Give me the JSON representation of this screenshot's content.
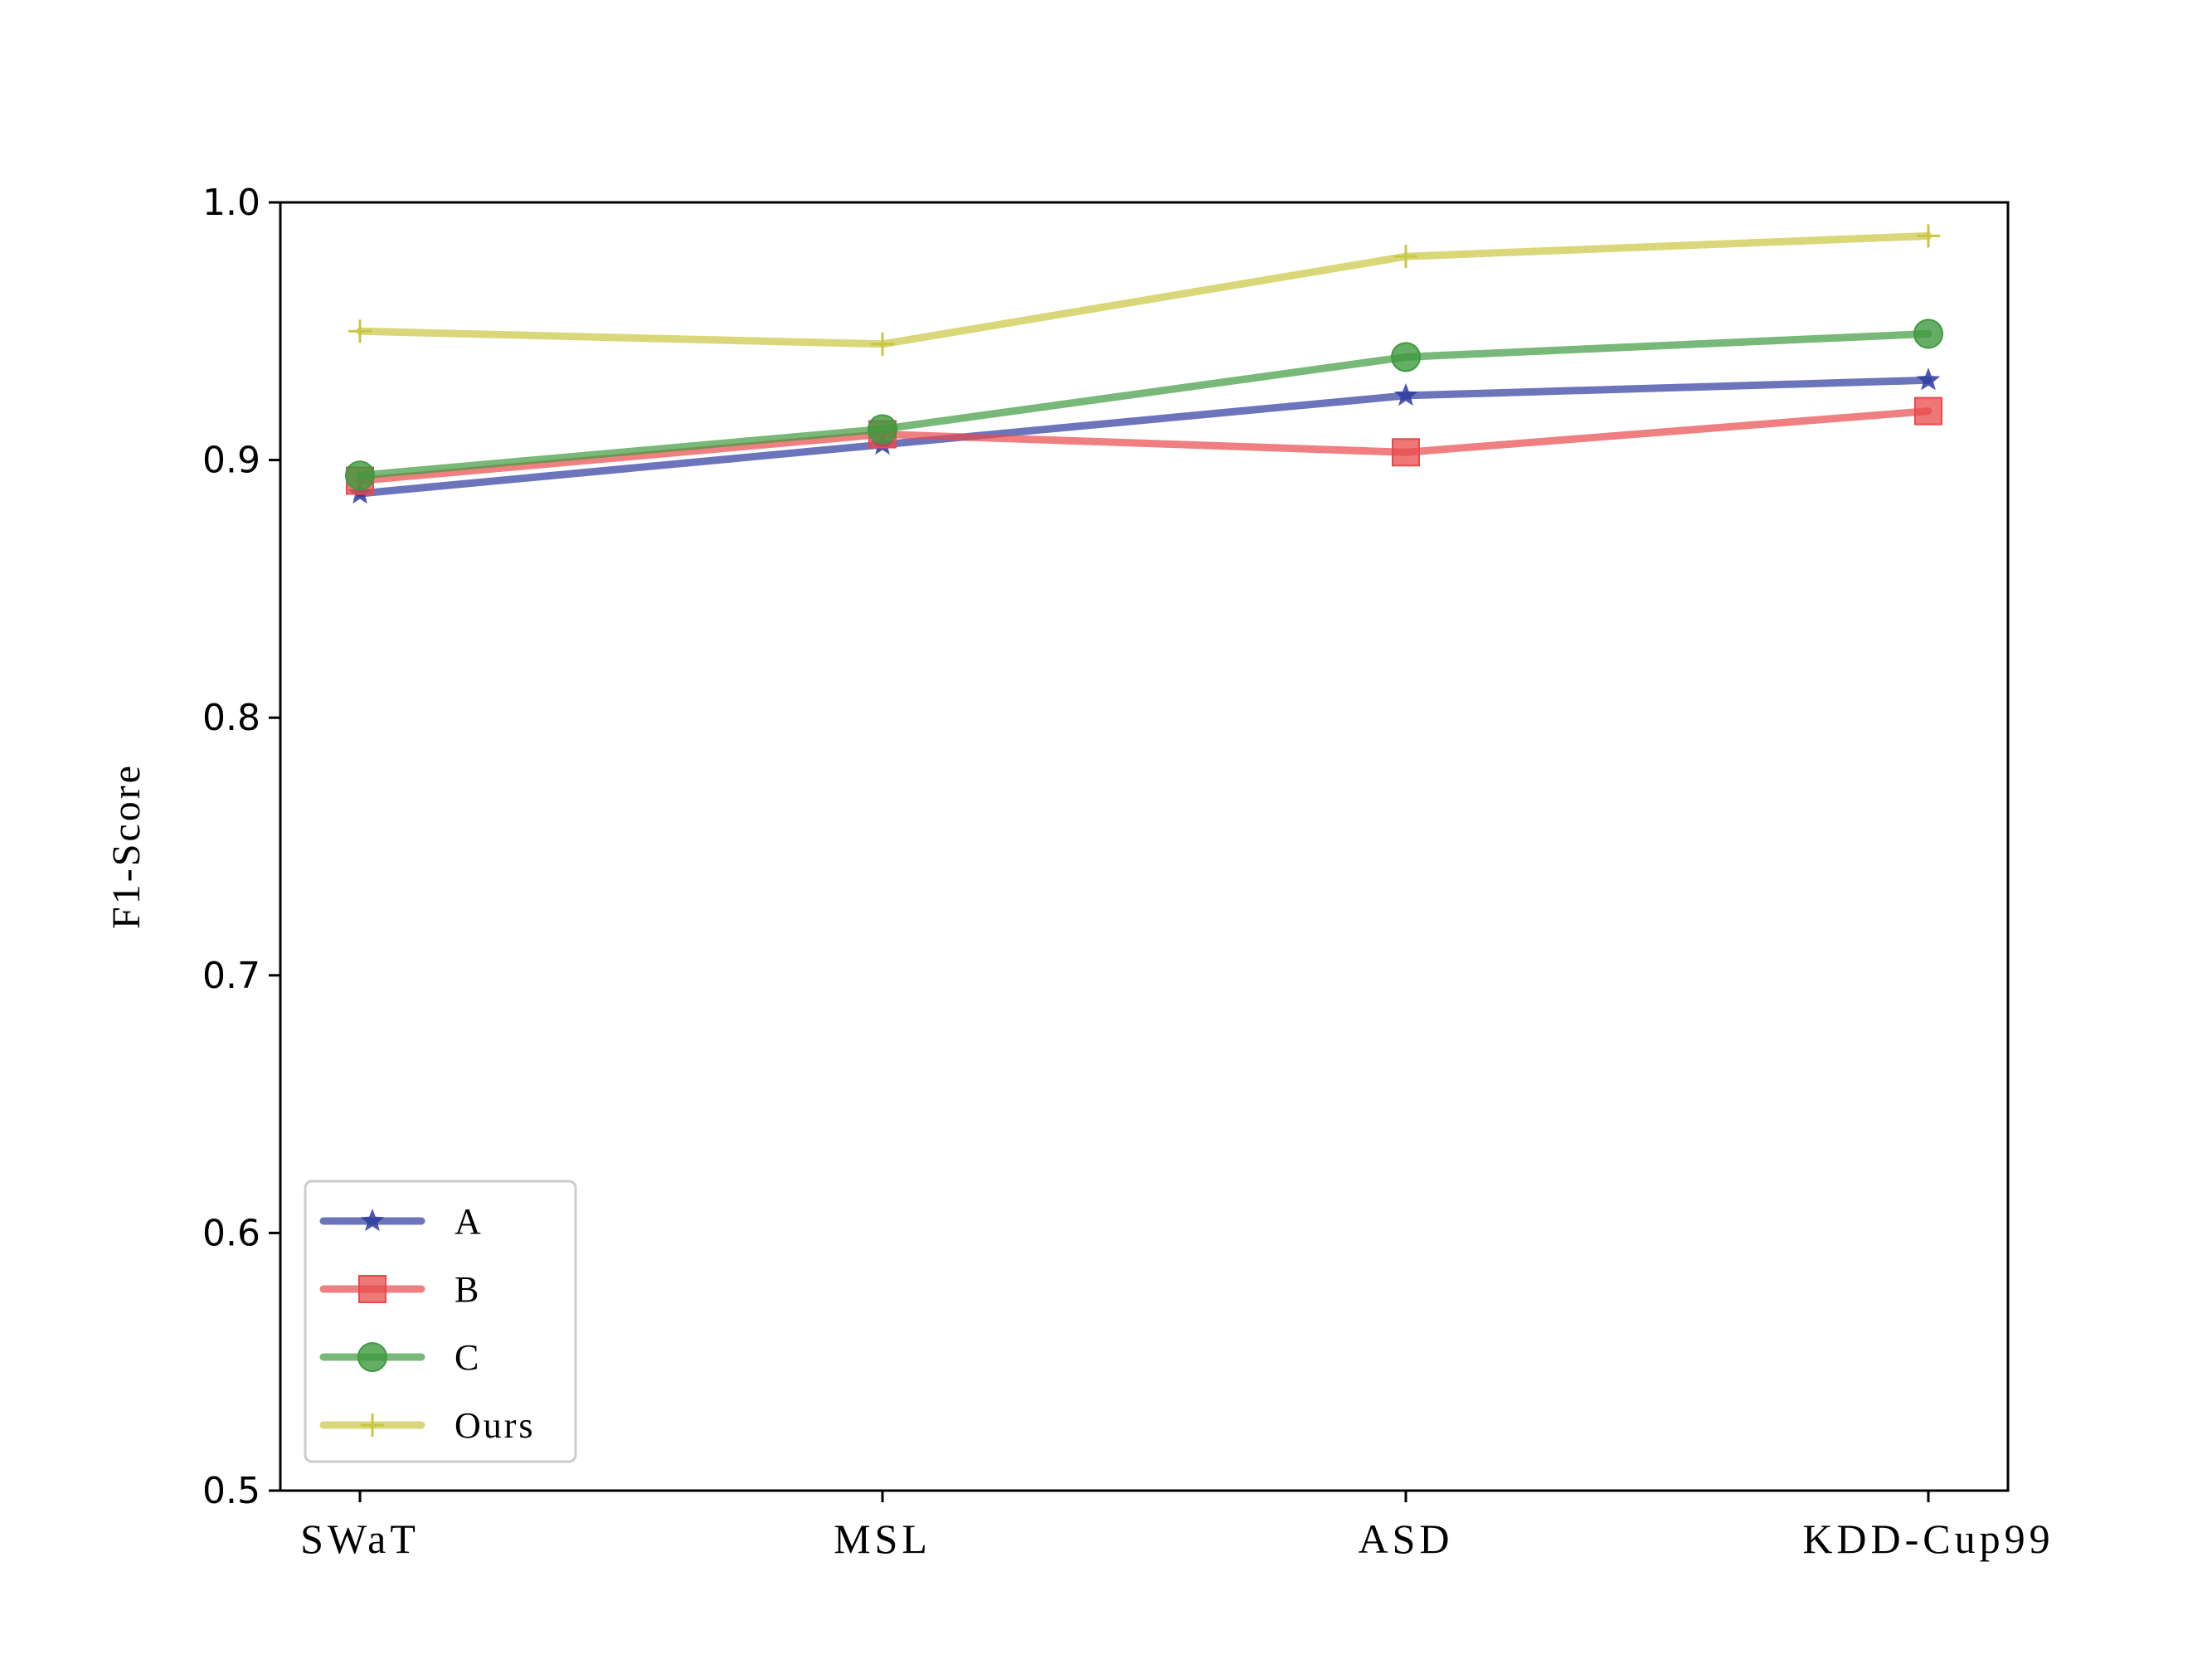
{
  "chart_data": {
    "type": "line",
    "categories": [
      "SWaT",
      "MSL",
      "ASD",
      "KDD-Cup99"
    ],
    "ylabel": "F1-Score",
    "ylim": [
      0.5,
      1.0
    ],
    "yticks": [
      "0.5",
      "0.6",
      "0.7",
      "0.8",
      "0.9",
      "1.0"
    ],
    "legend_position": "lower-left",
    "series": [
      {
        "name": "A",
        "values": [
          0.887,
          0.906,
          0.925,
          0.931
        ],
        "color": "#2e3a9e",
        "marker": "star-icon"
      },
      {
        "name": "B",
        "values": [
          0.892,
          0.91,
          0.903,
          0.919
        ],
        "color": "#e8494b",
        "marker": "square-icon"
      },
      {
        "name": "C",
        "values": [
          0.894,
          0.912,
          0.94,
          0.949
        ],
        "color": "#3e9a3e",
        "marker": "circle-icon"
      },
      {
        "name": "Ours",
        "values": [
          0.95,
          0.945,
          0.979,
          0.987
        ],
        "color": "#c9c640",
        "marker": "plus-icon"
      }
    ]
  }
}
